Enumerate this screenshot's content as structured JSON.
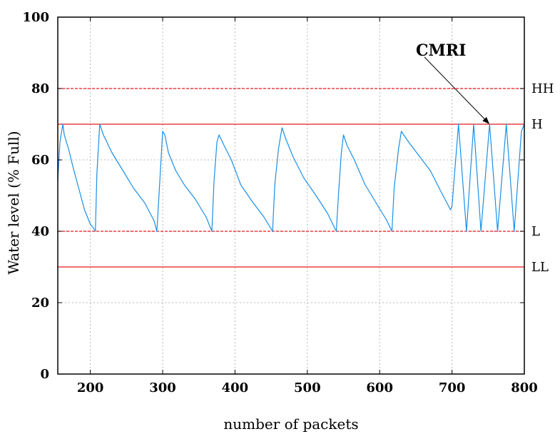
{
  "chart_data": {
    "type": "line",
    "title": "",
    "xlabel": "number of packets",
    "ylabel": "Water level (% Full)",
    "xlim": [
      155,
      800
    ],
    "ylim": [
      0,
      100
    ],
    "x_ticks": [
      200,
      300,
      400,
      500,
      600,
      700,
      800
    ],
    "y_ticks": [
      0,
      20,
      40,
      60,
      80,
      100
    ],
    "grid": true,
    "colors": {
      "series": "#1a8fe6",
      "reference": "#e8191a",
      "grid": "#b8b8b8",
      "axis": "#000000"
    },
    "reference_lines": [
      {
        "label": "HH",
        "y": 80,
        "style": "dashed"
      },
      {
        "label": "H",
        "y": 70,
        "style": "solid"
      },
      {
        "label": "L",
        "y": 40,
        "style": "dashed"
      },
      {
        "label": "LL",
        "y": 30,
        "style": "solid"
      }
    ],
    "series": [
      {
        "x": [
          155,
          158,
          162,
          164,
          170,
          176,
          184,
          192,
          200,
          204,
          207,
          209,
          213,
          218,
          230,
          245,
          260,
          275,
          288,
          292,
          296,
          300,
          303,
          308,
          318,
          330,
          345,
          360,
          368,
          371,
          375,
          378,
          385,
          395,
          408,
          425,
          440,
          452,
          455,
          460,
          465,
          470,
          480,
          495,
          512,
          528,
          540,
          543,
          547,
          550,
          555,
          565,
          580,
          595,
          610,
          617,
          620,
          626,
          630,
          640,
          655,
          670,
          685,
          698,
          700,
          709,
          720,
          730,
          740,
          752,
          763,
          775,
          786,
          796,
          800
        ],
        "y": [
          54,
          65,
          70,
          67,
          63,
          58,
          52,
          46,
          42,
          41,
          40,
          56,
          70,
          67,
          62,
          57,
          52,
          48,
          43,
          40,
          54,
          68,
          67,
          62,
          57,
          53,
          49,
          44,
          40,
          54,
          65,
          67,
          64,
          60,
          53,
          48,
          44,
          40,
          53,
          63,
          69,
          66,
          61,
          55,
          50,
          45,
          40,
          50,
          62,
          67,
          64,
          60,
          53,
          48,
          43,
          40,
          52,
          63,
          68,
          65,
          61,
          57,
          51,
          46,
          47,
          70,
          40,
          70,
          40,
          70,
          40,
          70,
          40,
          68,
          70
        ]
      }
    ],
    "annotation": {
      "text": "CMRI",
      "point": [
        752,
        70
      ]
    }
  }
}
